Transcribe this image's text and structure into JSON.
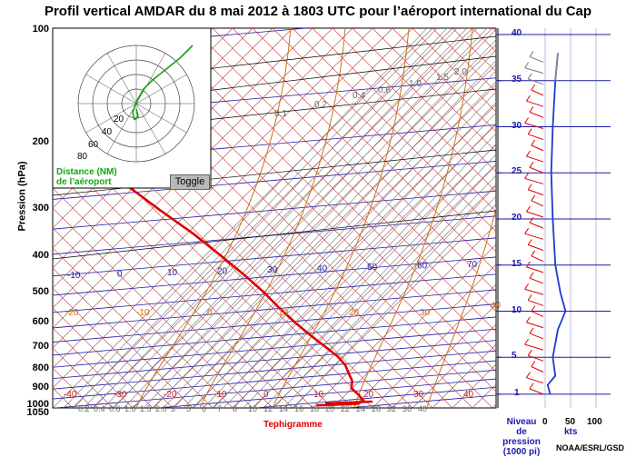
{
  "title": "Profil vertical AMDAR du 8 mai 2012 à 1803 UTC pour l’aéroport international du Cap",
  "y_axis_label": "Pression (hPa)",
  "pressure_ticks": [
    "100",
    "200",
    "300",
    "400",
    "500",
    "600",
    "700",
    "800",
    "900",
    "1000",
    "1050"
  ],
  "temp_labels_top": [
    "-10",
    "0",
    "10",
    "20",
    "30",
    "40",
    "50",
    "60",
    "70"
  ],
  "temp_labels_bottom": [
    "-40",
    "-30",
    "-20",
    "-10",
    "0",
    "10",
    "20",
    "30",
    "40"
  ],
  "mixing_ratio_labels": [
    "0.1",
    "0.2",
    "0.4",
    "0.6",
    "1.0",
    "1.5",
    "2.0"
  ],
  "isotherm_labels_mid": [
    "-20",
    "-10",
    "0",
    "10",
    "20",
    "30",
    "40"
  ],
  "bottom_wr_labels": [
    "0.2",
    "0.4",
    "0.6",
    "1.0",
    "1.5",
    "2.0",
    "3",
    "5",
    "6",
    "7",
    "8",
    "10",
    "12",
    "14",
    "16",
    "18",
    "20",
    "22",
    "24",
    "28",
    "32",
    "36",
    "40"
  ],
  "minimap": {
    "ring_labels": [
      "20",
      "40",
      "60",
      "80"
    ],
    "distance_label_line1": "Distance (NM)",
    "distance_label_line2": "de l’aéroport",
    "toggle_label": "Toggle"
  },
  "diagram_label": "Tephigramme",
  "altitude_ticks": [
    "1",
    "5",
    "10",
    "15",
    "20",
    "25",
    "30",
    "35",
    "40"
  ],
  "wind_axis": {
    "label_line1": "Niveau",
    "label_line2": "de pression",
    "label_line3": "(1000 pi)",
    "ticks": [
      "0",
      "50",
      "100"
    ],
    "unit": "kts"
  },
  "credit": "NOAA/ESRL/GSD",
  "colors": {
    "temperature": "#dd0000",
    "isobar": "#1a1aa8",
    "isotherm": "#cc2020",
    "dry_adiabat": "#8b3a3a",
    "mixing_ratio": "#777777",
    "saturated_adiabat": "#d07010",
    "track": "#17a317",
    "wind_speed": "#1a3ad0"
  },
  "chart_data": {
    "type": "line",
    "title": "Profil vertical AMDAR du 8 mai 2012 à 1803 UTC pour l’aéroport international du Cap",
    "xlabel": "Tephigramme",
    "ylabel": "Pression (hPa)",
    "series": [
      {
        "x_pressure_hpa": [
          1000,
          990,
          970,
          940,
          900,
          860,
          820,
          780,
          740,
          700,
          650,
          600,
          550,
          500,
          450,
          400,
          350,
          300,
          260,
          230,
          215,
          200
        ],
        "temp_c": [
          10,
          20,
          21,
          20,
          18,
          18,
          17,
          16,
          14,
          11,
          7,
          3,
          -1,
          -5,
          -10,
          -16,
          -23,
          -32,
          -40,
          -46,
          -50,
          -52
        ]
      }
    ],
    "wind_speed_profile": {
      "altitude_kft": [
        1,
        2,
        3,
        5,
        8,
        10,
        12,
        15,
        20,
        25,
        30,
        35,
        38
      ],
      "speed_kts": [
        10,
        5,
        20,
        15,
        25,
        40,
        30,
        20,
        15,
        12,
        15,
        20,
        25
      ]
    }
  }
}
